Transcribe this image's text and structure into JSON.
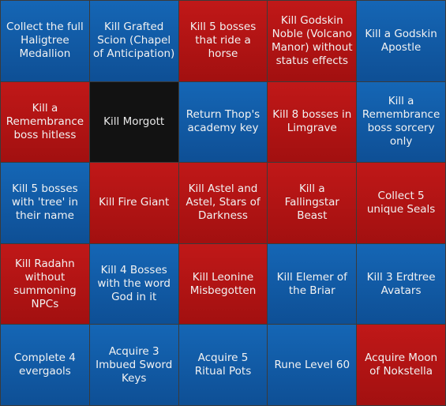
{
  "colors": {
    "blue": "#1363b0",
    "red": "#b71414",
    "black": "#121212",
    "border": "#3a3a3a"
  },
  "cells": [
    {
      "label": "Collect the full Haligtree Medallion",
      "color": "blue"
    },
    {
      "label": "Kill Grafted Scion (Chapel of Anticipation)",
      "color": "blue"
    },
    {
      "label": "Kill 5 bosses that ride a horse",
      "color": "red"
    },
    {
      "label": "Kill Godskin Noble (Volcano Manor) without status effects",
      "color": "red"
    },
    {
      "label": "Kill a Godskin Apostle",
      "color": "blue"
    },
    {
      "label": "Kill a Remembrance boss hitless",
      "color": "red"
    },
    {
      "label": "Kill Morgott",
      "color": "black"
    },
    {
      "label": "Return Thop's academy key",
      "color": "blue"
    },
    {
      "label": "Kill 8 bosses in Limgrave",
      "color": "red"
    },
    {
      "label": "Kill a Remembrance boss sorcery only",
      "color": "blue"
    },
    {
      "label": "Kill 5 bosses with 'tree' in their name",
      "color": "blue"
    },
    {
      "label": "Kill Fire Giant",
      "color": "red"
    },
    {
      "label": "Kill Astel and Astel, Stars of Darkness",
      "color": "red"
    },
    {
      "label": "Kill a Fallingstar Beast",
      "color": "red"
    },
    {
      "label": "Collect 5 unique Seals",
      "color": "red"
    },
    {
      "label": "Kill Radahn without summoning NPCs",
      "color": "red"
    },
    {
      "label": "Kill 4 Bosses with the word God in it",
      "color": "blue"
    },
    {
      "label": "Kill Leonine Misbegotten",
      "color": "red"
    },
    {
      "label": "Kill Elemer of the Briar",
      "color": "blue"
    },
    {
      "label": "Kill 3 Erdtree Avatars",
      "color": "blue"
    },
    {
      "label": "Complete 4 evergaols",
      "color": "blue"
    },
    {
      "label": "Acquire 3 Imbued Sword Keys",
      "color": "blue"
    },
    {
      "label": "Acquire 5 Ritual Pots",
      "color": "blue"
    },
    {
      "label": "Rune Level 60",
      "color": "blue"
    },
    {
      "label": "Acquire Moon of Nokstella",
      "color": "red"
    }
  ]
}
